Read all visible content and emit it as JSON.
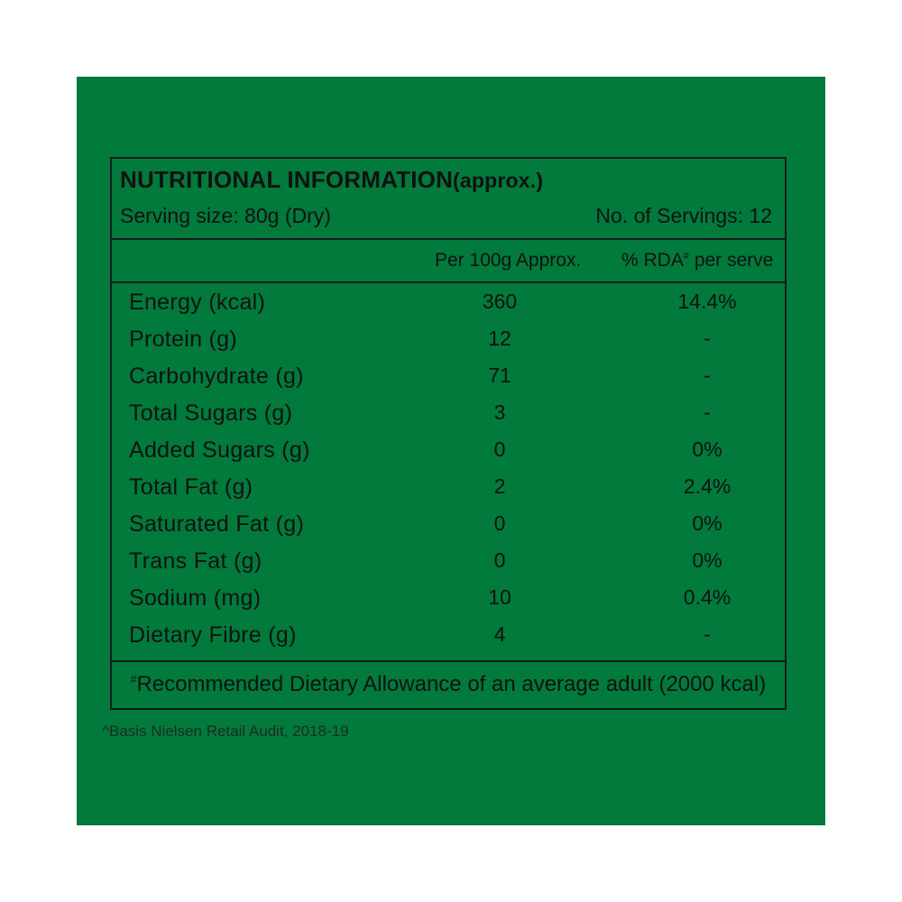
{
  "colors": {
    "panel_background": "#017a3c",
    "text": "#111111",
    "page_background": "#ffffff"
  },
  "label": {
    "title_main": "NUTRITIONAL INFORMATION",
    "title_suffix": "(approx.)",
    "serving_size": "Serving size: 80g (Dry)",
    "servings_count": "No. of Servings: 12",
    "columns": {
      "per_100g": "Per 100g Approx.",
      "rda_prefix": "% RDA",
      "rda_mark": "#",
      "rda_suffix": " per serve"
    },
    "rows": [
      {
        "nutrient": "Energy (kcal)",
        "amount": "360",
        "rda": "14.4%"
      },
      {
        "nutrient": "Protein (g)",
        "amount": "12",
        "rda": "-"
      },
      {
        "nutrient": "Carbohydrate (g)",
        "amount": "71",
        "rda": "-"
      },
      {
        "nutrient": "Total Sugars (g)",
        "amount": "3",
        "rda": "-"
      },
      {
        "nutrient": "Added Sugars (g)",
        "amount": "0",
        "rda": "0%"
      },
      {
        "nutrient": "Total Fat (g)",
        "amount": "2",
        "rda": "2.4%"
      },
      {
        "nutrient": "Saturated Fat (g)",
        "amount": "0",
        "rda": "0%"
      },
      {
        "nutrient": "Trans Fat (g)",
        "amount": "0",
        "rda": "0%"
      },
      {
        "nutrient": "Sodium (mg)",
        "amount": "10",
        "rda": "0.4%"
      },
      {
        "nutrient": "Dietary Fibre (g)",
        "amount": "4",
        "rda": "-"
      }
    ],
    "footnote_rda_mark": "#",
    "footnote_rda": "Recommended Dietary Allowance of an average adult (2000 kcal)",
    "footnote_basis": "^Basis Nielsen Retail Audit, 2018-19"
  }
}
